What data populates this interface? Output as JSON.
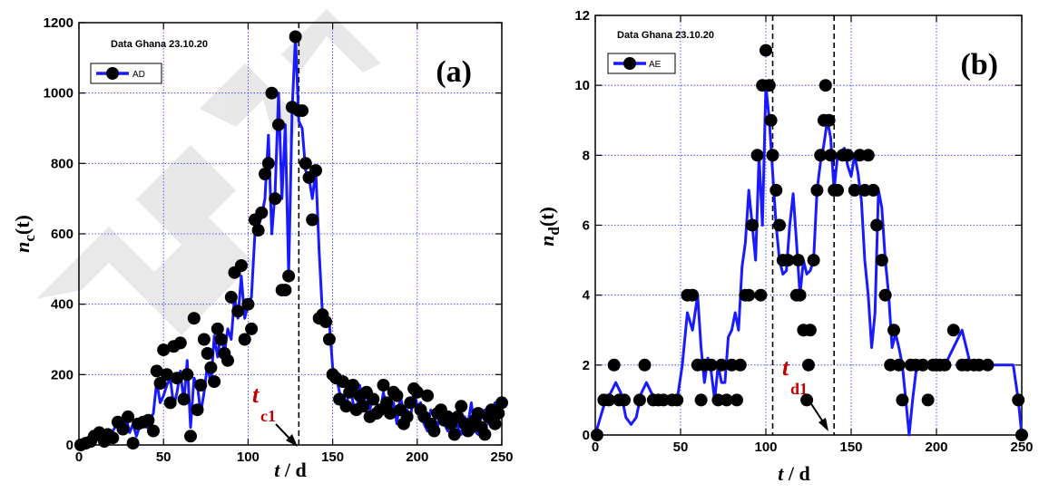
{
  "chart_data": [
    {
      "type": "line",
      "panel_label": "(a)",
      "subtitle": "Data Ghana 23.10.20",
      "xlabel_main": "t",
      "xlabel_rest": " / d",
      "ylabel_main": "n",
      "ylabel_sub": "c",
      "ylabel_rest": "(t)",
      "xlim": [
        0,
        250
      ],
      "ylim": [
        0,
        1200
      ],
      "xticks": [
        0,
        50,
        100,
        150,
        200,
        250
      ],
      "yticks": [
        0,
        200,
        400,
        600,
        800,
        1000,
        1200
      ],
      "grid": true,
      "legend_position": "top-left",
      "series": [
        {
          "name": "AD",
          "line_color": "#1a1aff",
          "marker_color": "#000000",
          "x": [
            0,
            2,
            4,
            6,
            8,
            10,
            12,
            14,
            16,
            18,
            20,
            22,
            24,
            26,
            28,
            30,
            32,
            34,
            36,
            38,
            40,
            42,
            44,
            46,
            48,
            50,
            52,
            54,
            56,
            58,
            60,
            62,
            64,
            66,
            68,
            70,
            72,
            74,
            76,
            78,
            80,
            82,
            84,
            86,
            88,
            90,
            92,
            94,
            96,
            98,
            100,
            102,
            104,
            106,
            108,
            110,
            112,
            114,
            116,
            118,
            120,
            122,
            124,
            126,
            128,
            130,
            132,
            134,
            136,
            138,
            140,
            142,
            144,
            146,
            148,
            150,
            152,
            154,
            156,
            158,
            160,
            162,
            164,
            166,
            168,
            170,
            172,
            174,
            176,
            178,
            180,
            182,
            184,
            186,
            188,
            190,
            192,
            194,
            196,
            198,
            200,
            202,
            204,
            206,
            208,
            210,
            212,
            214,
            216,
            218,
            220,
            222,
            224,
            226,
            228,
            230,
            232,
            234,
            236,
            238,
            240,
            242,
            244,
            246,
            248,
            250
          ],
          "y": [
            0,
            2,
            5,
            12,
            22,
            35,
            15,
            25,
            10,
            20,
            40,
            55,
            60,
            45,
            75,
            35,
            60,
            25,
            55,
            65,
            50,
            70,
            90,
            180,
            120,
            140,
            170,
            190,
            110,
            150,
            210,
            120,
            240,
            50,
            190,
            170,
            90,
            150,
            230,
            170,
            310,
            250,
            320,
            260,
            330,
            300,
            420,
            360,
            480,
            360,
            400,
            420,
            600,
            620,
            650,
            700,
            880,
            600,
            720,
            1000,
            700,
            910,
            480,
            950,
            1160,
            920,
            900,
            780,
            760,
            700,
            780,
            550,
            370,
            360,
            350,
            220,
            200,
            150,
            130,
            100,
            180,
            120,
            90,
            170,
            110,
            150,
            100,
            140,
            120,
            90,
            150,
            100,
            80,
            120,
            60,
            140,
            90,
            100,
            70,
            160,
            110,
            120,
            60,
            40,
            100,
            80,
            50,
            110,
            60,
            40,
            70,
            90,
            50,
            30,
            80,
            60,
            120,
            40,
            30,
            90,
            100,
            60,
            80,
            120,
            110,
            90
          ],
          "marker_x": [
            1,
            4,
            7,
            9,
            12,
            15,
            17,
            20,
            23,
            26,
            29,
            32,
            35,
            38,
            41,
            44,
            46,
            48,
            50,
            52,
            54,
            56,
            58,
            60,
            62,
            64,
            66,
            68,
            70,
            72,
            74,
            76,
            78,
            80,
            82,
            84,
            86,
            88,
            90,
            92,
            94,
            96,
            98,
            100,
            102,
            104,
            106,
            108,
            110,
            112,
            114,
            116,
            118,
            120,
            122,
            124,
            126,
            128,
            130,
            132,
            134,
            136,
            138,
            140,
            142,
            144,
            146,
            148,
            150,
            152,
            154,
            156,
            158,
            160,
            162,
            164,
            166,
            168,
            170,
            172,
            174,
            176,
            178,
            180,
            182,
            184,
            186,
            188,
            190,
            192,
            194,
            196,
            198,
            200,
            202,
            204,
            206,
            208,
            210,
            212,
            214,
            216,
            218,
            220,
            222,
            224,
            226,
            228,
            230,
            232,
            234,
            236,
            238,
            240,
            242,
            244,
            246,
            248,
            250
          ],
          "marker_y": [
            0,
            5,
            10,
            25,
            35,
            10,
            30,
            20,
            65,
            45,
            80,
            5,
            60,
            65,
            70,
            40,
            210,
            175,
            270,
            200,
            120,
            280,
            190,
            290,
            130,
            200,
            25,
            360,
            100,
            170,
            300,
            260,
            220,
            180,
            330,
            300,
            260,
            240,
            420,
            490,
            380,
            510,
            300,
            400,
            330,
            640,
            610,
            660,
            770,
            800,
            1000,
            700,
            910,
            440,
            440,
            480,
            960,
            1160,
            950,
            950,
            800,
            760,
            640,
            780,
            360,
            370,
            350,
            300,
            200,
            190,
            130,
            180,
            110,
            150,
            170,
            100,
            140,
            110,
            150,
            80,
            130,
            90,
            100,
            170,
            120,
            90,
            150,
            140,
            100,
            60,
            80,
            120,
            160,
            150,
            100,
            80,
            140,
            60,
            40,
            90,
            100,
            70,
            80,
            60,
            30,
            80,
            110,
            60,
            40,
            50,
            70,
            90,
            50,
            30,
            80,
            100,
            60,
            90,
            120
          ]
        }
      ],
      "annotations": [
        {
          "type": "vline",
          "x": 130,
          "style": "dashed"
        },
        {
          "type": "label",
          "text_main": "t",
          "text_sub": "c1",
          "color": "#c00000"
        },
        {
          "type": "arrow",
          "target_x": 130,
          "target_y": 0
        }
      ]
    },
    {
      "type": "line",
      "panel_label": "(b)",
      "subtitle": "Data Ghana 23.10.20",
      "xlabel_main": "t",
      "xlabel_rest": " / d",
      "ylabel_main": "n",
      "ylabel_sub": "d",
      "ylabel_rest": "(t)",
      "xlim": [
        0,
        250
      ],
      "ylim": [
        0,
        12
      ],
      "xticks": [
        0,
        50,
        100,
        150,
        200,
        250
      ],
      "yticks": [
        0,
        2,
        4,
        6,
        8,
        10,
        12
      ],
      "grid": true,
      "legend_position": "top-left",
      "series": [
        {
          "name": "AE",
          "line_color": "#1a1aff",
          "marker_color": "#000000",
          "x": [
            0,
            3,
            6,
            9,
            12,
            15,
            18,
            21,
            24,
            27,
            30,
            33,
            36,
            39,
            42,
            45,
            48,
            51,
            54,
            57,
            60,
            62,
            64,
            66,
            68,
            70,
            72,
            74,
            76,
            78,
            80,
            82,
            84,
            86,
            88,
            90,
            92,
            94,
            96,
            98,
            100,
            102,
            104,
            106,
            108,
            110,
            112,
            114,
            116,
            118,
            120,
            122,
            124,
            126,
            128,
            130,
            132,
            134,
            136,
            138,
            140,
            142,
            144,
            146,
            148,
            150,
            152,
            154,
            156,
            158,
            160,
            162,
            164,
            166,
            168,
            170,
            172,
            174,
            176,
            178,
            180,
            182,
            184,
            186,
            188,
            190,
            192,
            194,
            196,
            198,
            200,
            205,
            210,
            215,
            220,
            225,
            230,
            235,
            240,
            245,
            248,
            250
          ],
          "y": [
            0,
            0.5,
            1,
            1.2,
            1.5,
            1.2,
            0.5,
            0.3,
            0.5,
            1.2,
            1.5,
            1.2,
            1,
            1,
            1,
            1,
            1,
            2,
            3.5,
            3,
            4,
            2.5,
            1.5,
            2.2,
            1.8,
            1,
            2,
            1.5,
            1.5,
            2.8,
            3,
            3.5,
            3,
            4.8,
            5.5,
            7,
            6,
            5,
            8,
            6,
            10,
            9,
            7.5,
            6,
            5,
            4.6,
            4.7,
            6,
            6.9,
            5.5,
            4,
            5,
            4.6,
            4.7,
            5,
            7,
            7.8,
            8.3,
            9,
            8.5,
            7,
            8,
            8.1,
            8.2,
            7.7,
            7.4,
            8,
            7.5,
            6.7,
            5,
            4,
            2.5,
            3.5,
            7,
            6.5,
            5,
            4,
            2.5,
            2.9,
            2.5,
            2,
            1,
            0,
            1,
            1.8,
            2,
            2,
            2,
            2,
            2,
            2,
            2,
            2.5,
            3,
            2,
            2,
            2,
            2,
            2,
            2,
            1,
            0
          ],
          "marker_x": [
            1,
            5,
            8,
            11,
            14,
            17,
            26,
            29,
            34,
            37,
            40,
            45,
            48,
            54,
            57,
            60,
            62,
            64,
            68,
            72,
            74,
            77,
            80,
            83,
            85,
            88,
            90,
            92,
            95,
            97,
            98,
            100,
            102,
            103,
            104,
            106,
            108,
            110,
            113,
            118,
            119,
            120,
            122,
            124,
            125,
            126,
            128,
            130,
            132,
            134,
            135,
            137,
            138,
            140,
            142,
            145,
            148,
            152,
            155,
            158,
            160,
            163,
            165,
            168,
            170,
            173,
            175,
            178,
            180,
            185,
            188,
            192,
            195,
            198,
            200,
            202,
            205,
            210,
            215,
            218,
            222,
            225,
            230,
            248,
            250
          ],
          "marker_y": [
            0,
            1,
            1,
            2,
            1,
            1,
            1,
            2,
            1,
            1,
            1,
            1,
            1,
            4,
            4,
            2,
            1,
            2,
            2,
            1,
            2,
            1,
            2,
            1,
            2,
            4,
            4,
            6,
            8,
            4,
            10,
            11,
            10,
            9,
            8,
            7,
            6,
            5,
            5,
            4,
            5,
            4,
            3,
            1,
            2,
            3,
            5,
            7,
            8,
            9,
            10,
            9,
            8,
            7,
            7,
            8,
            8,
            7,
            8,
            7,
            8,
            7,
            6,
            5,
            4,
            2,
            3,
            2,
            1,
            2,
            2,
            2,
            1,
            2,
            2,
            2,
            2,
            3,
            2,
            2,
            2,
            2,
            2,
            1,
            0
          ]
        }
      ],
      "annotations": [
        {
          "type": "vline",
          "x": 104,
          "style": "dashed"
        },
        {
          "type": "vline",
          "x": 140,
          "style": "dashed"
        },
        {
          "type": "label",
          "text_main": "t",
          "text_sub": "d1",
          "color": "#c00000"
        },
        {
          "type": "arrow",
          "target_x": 140,
          "target_y": 0
        }
      ]
    }
  ]
}
